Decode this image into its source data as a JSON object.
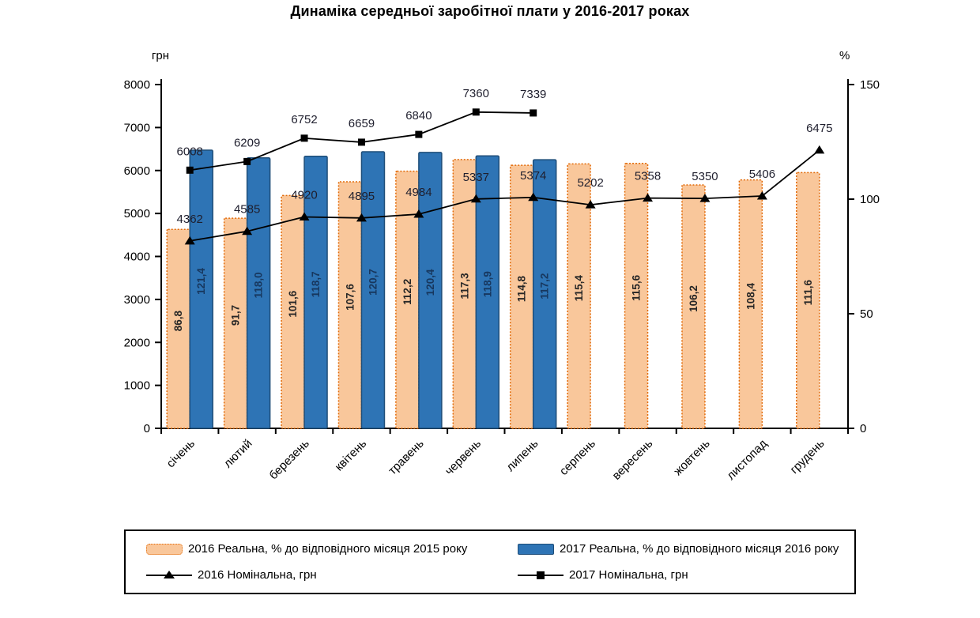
{
  "page": {
    "title": "Динаміка середньої заробітної плати у 2016-2017 роках"
  },
  "chart_data": {
    "type": "combo-bar-line",
    "title": "Динаміка середньої заробітної плати у 2016-2017 роках",
    "grid": false,
    "legend_position": "bottom",
    "categories": [
      "січень",
      "лютий",
      "березень",
      "квітень",
      "травень",
      "червень",
      "липень",
      "серпень",
      "вересень",
      "жовтень",
      "листопад",
      "грудень"
    ],
    "left_axis": {
      "label": "грн",
      "min": 0,
      "max": 8000,
      "ticks": [
        "0",
        "1000",
        "2000",
        "3000",
        "4000",
        "5000",
        "6000",
        "7000",
        "8000"
      ]
    },
    "right_axis": {
      "label": "%",
      "min": 0,
      "max": 150,
      "ticks": [
        "0",
        "50",
        "100",
        "150"
      ]
    },
    "series": [
      {
        "name": "2016 Реальна, % до відповідного місяця 2015 року",
        "type": "bar",
        "axis": "right",
        "fill": "#F9C79B",
        "border": "#E26B0A",
        "border_style": "dotted",
        "label_color": "#262626",
        "values": [
          86.8,
          91.7,
          101.6,
          107.6,
          112.2,
          117.3,
          114.8,
          115.4,
          115.6,
          106.2,
          108.4,
          111.6
        ],
        "labels": [
          "86,8",
          "91,7",
          "101,6",
          "107,6",
          "112,2",
          "117,3",
          "114,8",
          "115,4",
          "115,6",
          "106,2",
          "108,4",
          "111,6"
        ]
      },
      {
        "name": "2017 Реальна, % до відповідного місяця 2016 року",
        "type": "bar",
        "axis": "right",
        "fill": "#2E74B5",
        "border": "#1F4E79",
        "border_style": "solid",
        "label_color": "#17375E",
        "values": [
          121.4,
          118.0,
          118.7,
          120.7,
          120.4,
          118.9,
          117.2,
          null,
          null,
          null,
          null,
          null
        ],
        "labels": [
          "121,4",
          "118,0",
          "118,7",
          "120,7",
          "120,4",
          "118,9",
          "117,2",
          null,
          null,
          null,
          null,
          null
        ]
      },
      {
        "name": "2016 Номінальна, грн",
        "type": "line",
        "axis": "left",
        "marker": "triangle",
        "color": "#000000",
        "label_color": "#1F1F2E",
        "values": [
          4362,
          4585,
          4920,
          4895,
          4984,
          5337,
          5374,
          5202,
          5358,
          5350,
          5406,
          6475
        ],
        "labels": [
          "4362",
          "4585",
          "4920",
          "4895",
          "4984",
          "5337",
          "5374",
          "5202",
          "5358",
          "5350",
          "5406",
          "6475"
        ]
      },
      {
        "name": "2017 Номінальна, грн",
        "type": "line",
        "axis": "left",
        "marker": "square",
        "color": "#000000",
        "label_color": "#1F1F2E",
        "values": [
          6008,
          6209,
          6752,
          6659,
          6840,
          7360,
          7339,
          null,
          null,
          null,
          null,
          null
        ],
        "labels": [
          "6008",
          "6209",
          "6752",
          "6659",
          "6840",
          "7360",
          "7339",
          null,
          null,
          null,
          null,
          null
        ]
      }
    ]
  }
}
